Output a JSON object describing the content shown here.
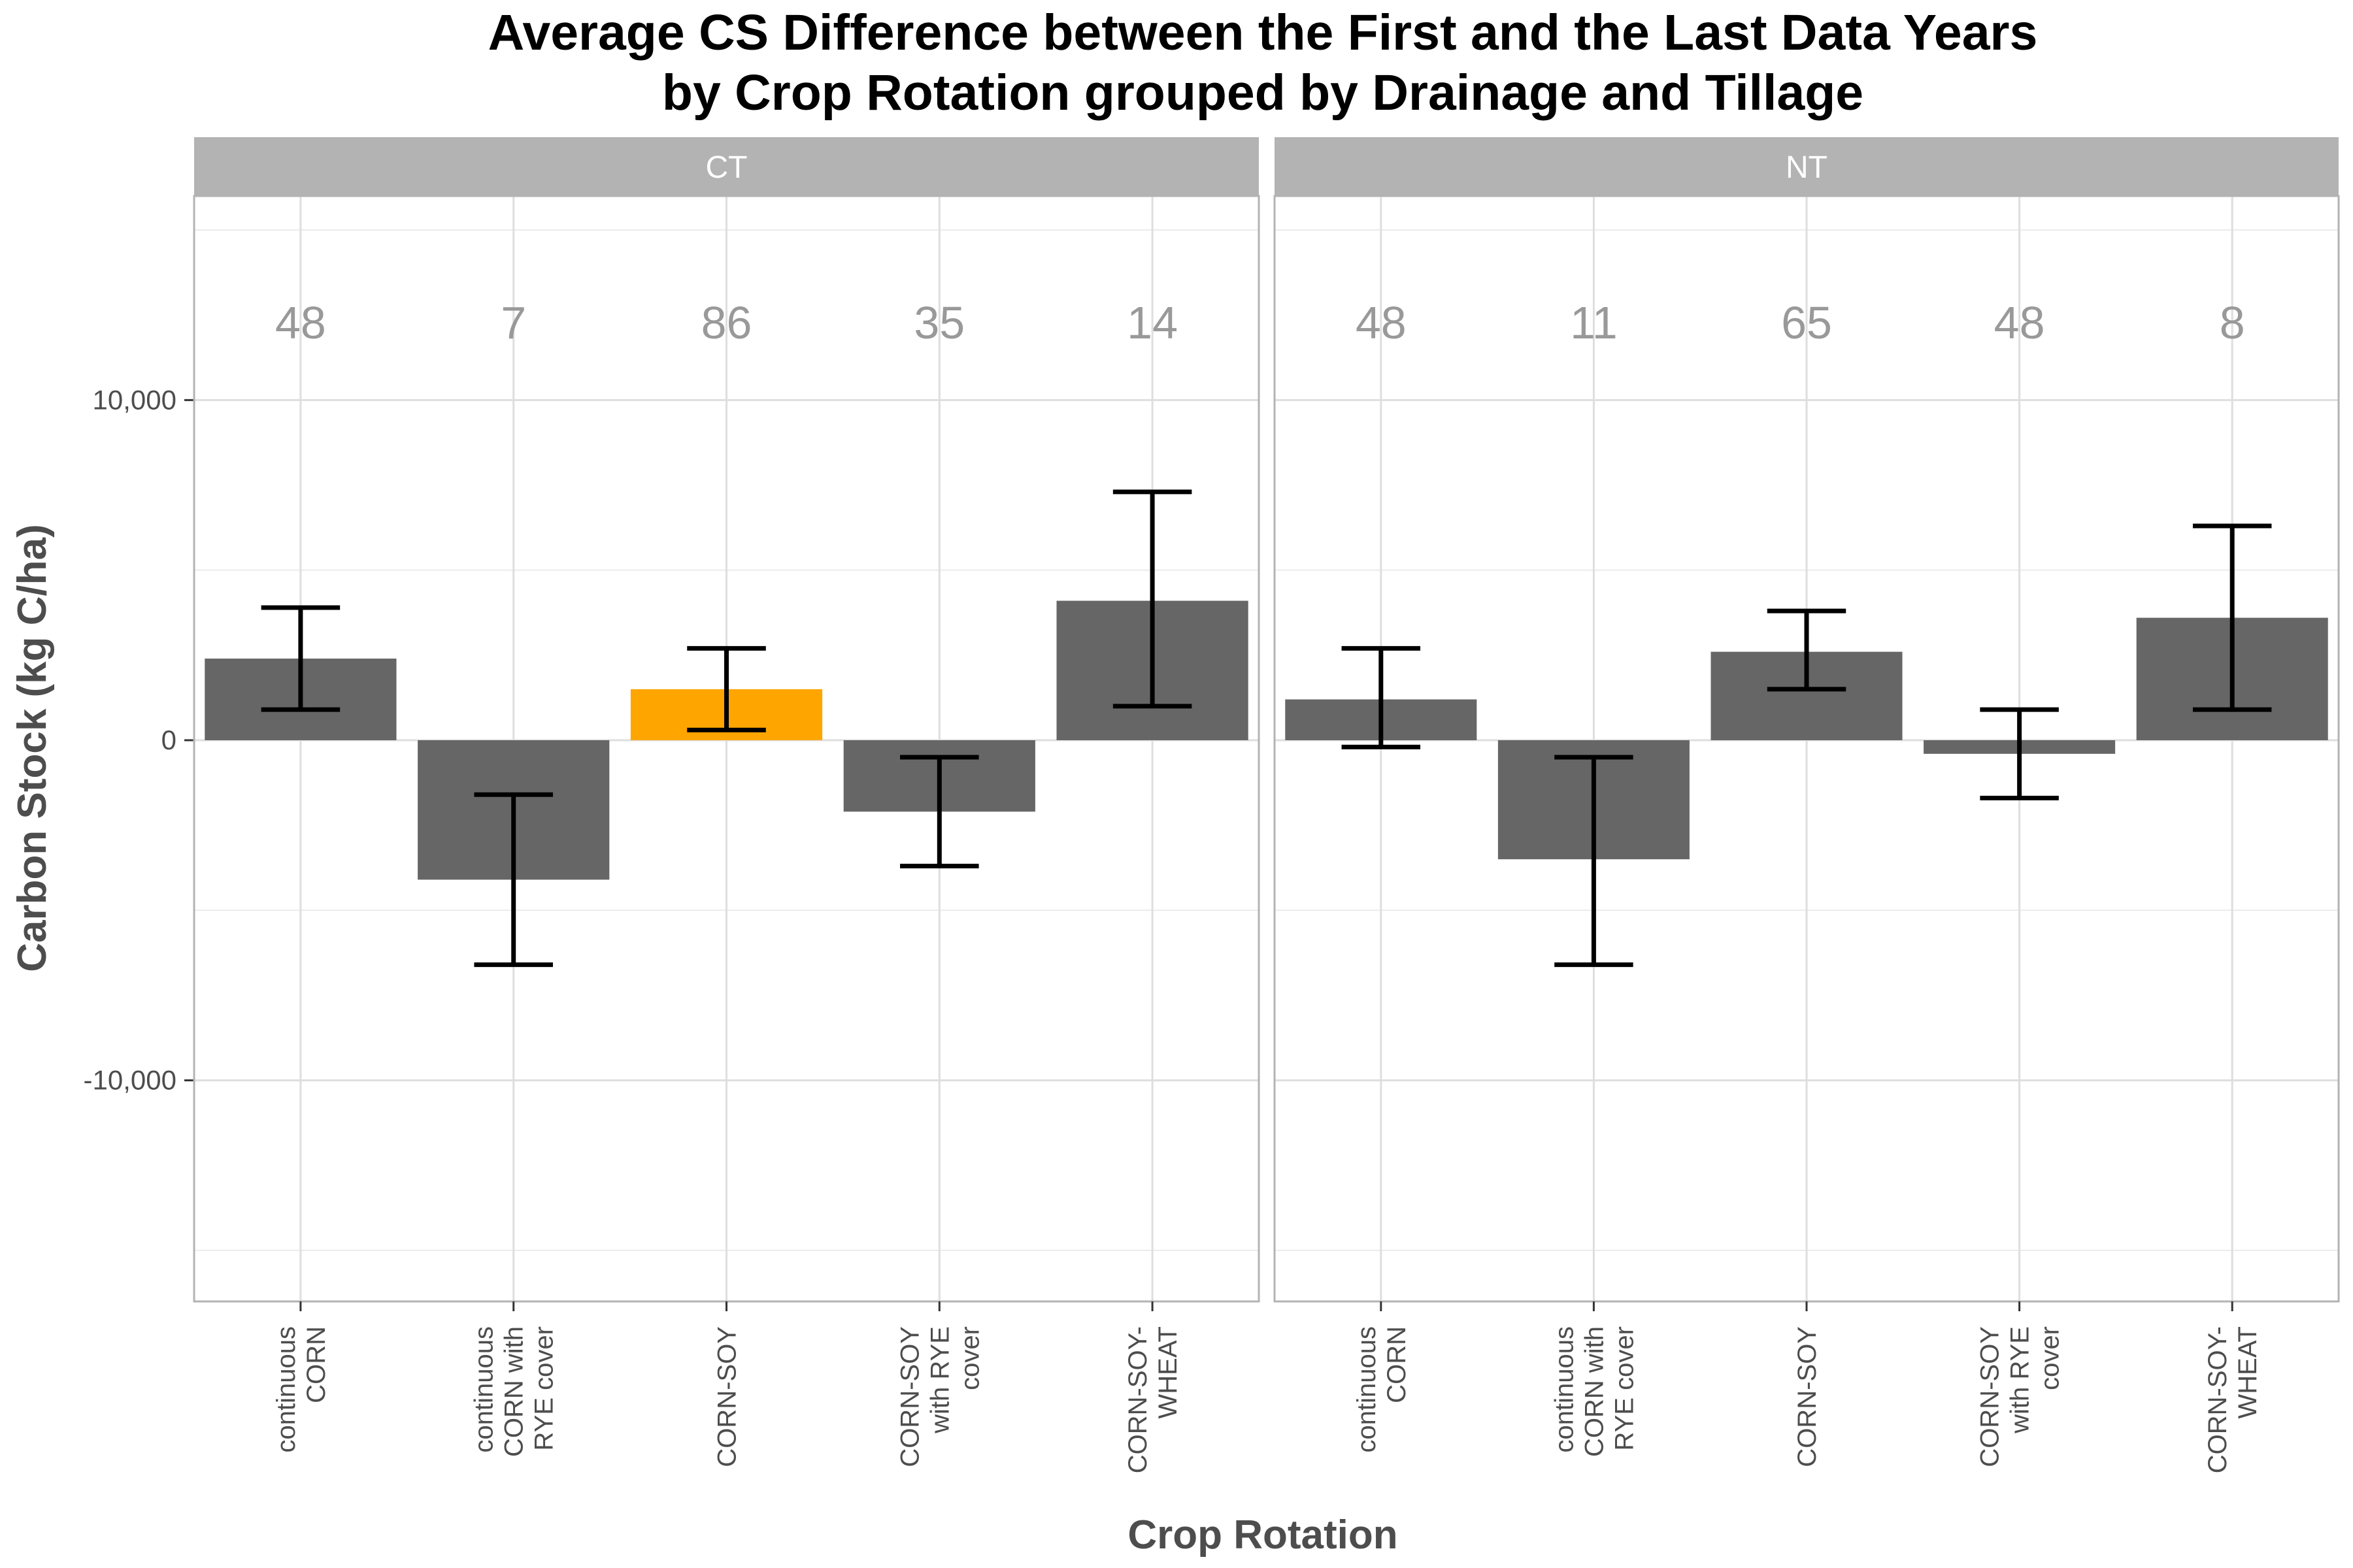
{
  "chart_data": {
    "type": "bar",
    "title": [
      "Average CS Difference between the First and the Last Data Years",
      "by Crop Rotation grouped by Drainage and Tillage"
    ],
    "xlabel": "Crop Rotation",
    "ylabel": "Carbon Stock (kg C/ha)",
    "ylim": [
      -16500,
      16000
    ],
    "yticks": [
      10000,
      0,
      -10000
    ],
    "ytick_labels": [
      "10,000",
      "0",
      "-10,000"
    ],
    "grid": true,
    "categories": [
      [
        "continuous",
        "CORN"
      ],
      [
        "continuous",
        "CORN with",
        "RYE cover"
      ],
      [
        "CORN-SOY"
      ],
      [
        "CORN-SOY",
        "with RYE",
        "cover"
      ],
      [
        "CORN-SOY-",
        "WHEAT"
      ]
    ],
    "bar_color": "#666666",
    "highlight_color": "#FFA500",
    "error_bar_color": "#000000",
    "panels": [
      {
        "label": "CT",
        "values": [
          2400,
          -4100,
          1500,
          -2100,
          4100
        ],
        "error_low": [
          900,
          -6600,
          300,
          -3700,
          1000
        ],
        "error_high": [
          3900,
          -1600,
          2700,
          -500,
          7300
        ],
        "counts": [
          "48",
          "7",
          "86",
          "35",
          "14"
        ],
        "highlight_index": 2
      },
      {
        "label": "NT",
        "values": [
          1200,
          -3500,
          2600,
          -400,
          3600
        ],
        "error_low": [
          -200,
          -6600,
          1500,
          -1700,
          900
        ],
        "error_high": [
          2700,
          -500,
          3800,
          900,
          6300
        ],
        "counts": [
          "48",
          "11",
          "65",
          "48",
          "8"
        ],
        "highlight_index": null
      }
    ]
  }
}
